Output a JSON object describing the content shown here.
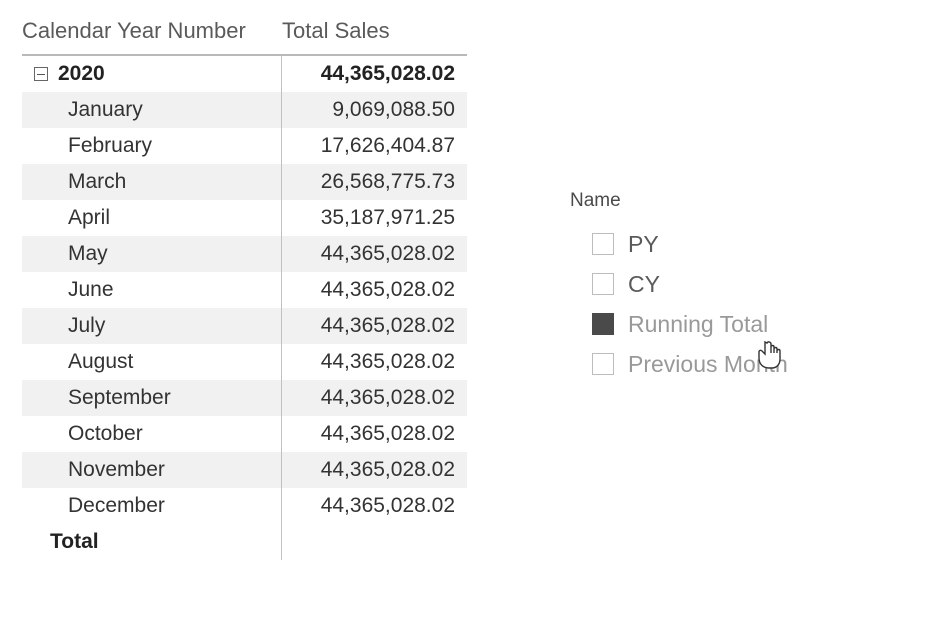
{
  "matrix": {
    "header": {
      "category_label": "Calendar Year Number",
      "value_label": "Total Sales"
    },
    "year_row": {
      "label": "2020",
      "value": "44,365,028.02"
    },
    "months": [
      {
        "label": "January",
        "value": "9,069,088.50"
      },
      {
        "label": "February",
        "value": "17,626,404.87"
      },
      {
        "label": "March",
        "value": "26,568,775.73"
      },
      {
        "label": "April",
        "value": "35,187,971.25"
      },
      {
        "label": "May",
        "value": "44,365,028.02"
      },
      {
        "label": "June",
        "value": "44,365,028.02"
      },
      {
        "label": "July",
        "value": "44,365,028.02"
      },
      {
        "label": "August",
        "value": "44,365,028.02"
      },
      {
        "label": "September",
        "value": "44,365,028.02"
      },
      {
        "label": "October",
        "value": "44,365,028.02"
      },
      {
        "label": "November",
        "value": "44,365,028.02"
      },
      {
        "label": "December",
        "value": "44,365,028.02"
      }
    ],
    "total_row": {
      "label": "Total",
      "value": ""
    },
    "alt_row_color": "#f1f1f1",
    "divider_color": "#a8c7e0",
    "header_border_color": "#b9b9b9"
  },
  "slicer": {
    "title": "Name",
    "items": [
      {
        "label": "PY",
        "checked": false,
        "dimmed": false
      },
      {
        "label": "CY",
        "checked": false,
        "dimmed": false
      },
      {
        "label": "Running Total",
        "checked": true,
        "dimmed": true
      },
      {
        "label": "Previous Month",
        "checked": false,
        "dimmed": true
      }
    ],
    "checkbox_border": "#bdbdbd",
    "checkbox_fill": "#4a4a4a"
  }
}
